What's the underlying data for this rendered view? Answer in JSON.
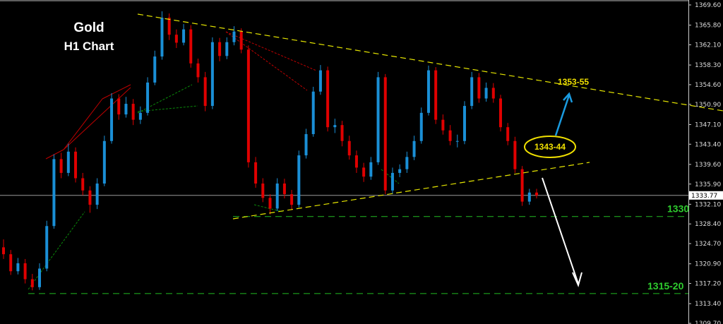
{
  "chart_data": {
    "type": "candlestick",
    "title": "Gold",
    "subtitle": "H1 Chart",
    "current_price": "1333.77",
    "y_ticks": [
      "1369.60",
      "1365.80",
      "1362.10",
      "1358.30",
      "1354.60",
      "1350.90",
      "1347.10",
      "1343.40",
      "1339.60",
      "1335.90",
      "1332.10",
      "1328.40",
      "1324.70",
      "1320.90",
      "1317.20",
      "1313.40",
      "1309.70"
    ],
    "ylim": [
      1309.0,
      1370.5
    ],
    "colors": {
      "up": "#1a8fd6",
      "down": "#e00000",
      "trendline": "#e6e600",
      "support": "#22bb22",
      "current": "#9a9a9a"
    },
    "candles": [
      [
        1324,
        1325.5,
        1321.8,
        1322.7
      ],
      [
        1322.7,
        1323.5,
        1318.8,
        1319.5
      ],
      [
        1319.5,
        1322,
        1318.9,
        1321
      ],
      [
        1321,
        1321.8,
        1317.2,
        1318
      ],
      [
        1318,
        1319,
        1315.9,
        1316.5
      ],
      [
        1316.5,
        1321,
        1316,
        1320
      ],
      [
        1320,
        1329,
        1319.5,
        1328
      ],
      [
        1328,
        1341.5,
        1327.5,
        1340.6
      ],
      [
        1340.6,
        1341.8,
        1337,
        1338
      ],
      [
        1338,
        1343.5,
        1337.4,
        1342
      ],
      [
        1342,
        1342.8,
        1336.2,
        1337
      ],
      [
        1337,
        1338,
        1333.8,
        1334.7
      ],
      [
        1334.7,
        1335.5,
        1330.5,
        1332
      ],
      [
        1332,
        1337,
        1331.2,
        1336
      ],
      [
        1336,
        1345,
        1335.5,
        1344
      ],
      [
        1344,
        1353,
        1343.5,
        1352
      ],
      [
        1352,
        1352.8,
        1348,
        1349
      ],
      [
        1349,
        1352.3,
        1348.4,
        1351
      ],
      [
        1351,
        1351.9,
        1347,
        1348
      ],
      [
        1348,
        1350.5,
        1347.2,
        1349.3
      ],
      [
        1349.3,
        1356,
        1348.8,
        1355
      ],
      [
        1355,
        1361,
        1354.5,
        1359.9
      ],
      [
        1359.9,
        1368.4,
        1359.3,
        1367.2
      ],
      [
        1367.2,
        1368,
        1363,
        1364
      ],
      [
        1364,
        1365,
        1361.5,
        1362.5
      ],
      [
        1362.5,
        1366,
        1362,
        1365
      ],
      [
        1365,
        1365.8,
        1357.8,
        1358.6
      ],
      [
        1358.6,
        1359.5,
        1355,
        1356
      ],
      [
        1356,
        1357,
        1349.6,
        1350.6
      ],
      [
        1350.6,
        1363.5,
        1350,
        1362.6
      ],
      [
        1362.6,
        1363.4,
        1359,
        1360
      ],
      [
        1360,
        1363.5,
        1359.4,
        1362.6
      ],
      [
        1362.6,
        1365.6,
        1362,
        1364.6
      ],
      [
        1364.6,
        1365.2,
        1360.5,
        1361.2
      ],
      [
        1361.2,
        1362,
        1339,
        1340
      ],
      [
        1340,
        1341,
        1335.2,
        1336
      ],
      [
        1336,
        1337,
        1332.5,
        1333.3
      ],
      [
        1333.3,
        1334,
        1330.2,
        1331.3
      ],
      [
        1331.3,
        1337,
        1330.8,
        1336
      ],
      [
        1336,
        1336.9,
        1333.2,
        1334
      ],
      [
        1334,
        1334.8,
        1331,
        1332
      ],
      [
        1332,
        1342.2,
        1331.5,
        1341.3
      ],
      [
        1341.3,
        1346.3,
        1340.7,
        1345.3
      ],
      [
        1345.3,
        1354.2,
        1344.8,
        1353.3
      ],
      [
        1353.3,
        1358.3,
        1352.7,
        1357.3
      ],
      [
        1357.3,
        1358,
        1345.8,
        1346.6
      ],
      [
        1346.6,
        1348.2,
        1345.5,
        1347
      ],
      [
        1347,
        1347.8,
        1343,
        1344
      ],
      [
        1344,
        1345,
        1340.5,
        1341.3
      ],
      [
        1341.3,
        1342.2,
        1338,
        1339
      ],
      [
        1339,
        1339.9,
        1336.3,
        1337.3
      ],
      [
        1337.3,
        1341,
        1336.7,
        1340
      ],
      [
        1340,
        1357,
        1339.5,
        1356
      ],
      [
        1356,
        1356.6,
        1334,
        1334.7
      ],
      [
        1334.7,
        1339,
        1334,
        1338
      ],
      [
        1338,
        1339.6,
        1337.2,
        1338.7
      ],
      [
        1338.7,
        1342,
        1338,
        1341
      ],
      [
        1341,
        1345,
        1340.4,
        1344
      ],
      [
        1344,
        1350.3,
        1343.5,
        1349.3
      ],
      [
        1349.3,
        1358.2,
        1348.8,
        1357.3
      ],
      [
        1357.3,
        1357.9,
        1347.2,
        1348
      ],
      [
        1348,
        1349,
        1345.2,
        1346
      ],
      [
        1346,
        1347,
        1343.2,
        1344
      ],
      [
        1344,
        1345.2,
        1342.8,
        1344
      ],
      [
        1344,
        1351.5,
        1343.4,
        1350.6
      ],
      [
        1350.6,
        1357,
        1350,
        1356
      ],
      [
        1356,
        1356.8,
        1351.2,
        1352
      ],
      [
        1352,
        1355,
        1351.4,
        1354
      ],
      [
        1354,
        1354.9,
        1351.2,
        1352
      ],
      [
        1352,
        1352.7,
        1345.8,
        1346.6
      ],
      [
        1346.6,
        1347.4,
        1343.2,
        1344
      ],
      [
        1344,
        1344.8,
        1338,
        1338.7
      ],
      [
        1338.7,
        1339.3,
        1331.8,
        1332.6
      ],
      [
        1332.6,
        1335,
        1332,
        1334.3
      ],
      [
        1334.3,
        1335,
        1333.2,
        1333.77
      ]
    ],
    "levels": [
      {
        "label": "1330",
        "price": 1329.8
      },
      {
        "label": "1315-20",
        "price": 1315.3
      }
    ],
    "annotations": {
      "upper_target": "1353-55",
      "breakout_zone": "1343-44"
    }
  }
}
